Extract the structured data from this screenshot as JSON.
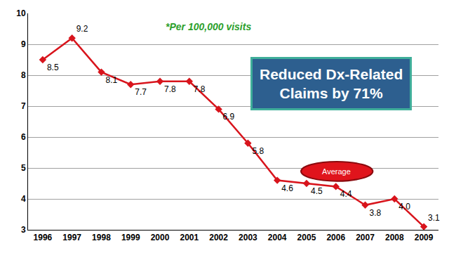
{
  "chart_data": {
    "type": "line",
    "annotations": [
      "*Per 100,000 visits",
      "Reduced Dx-Related Claims by 71%",
      "Average"
    ],
    "categories": [
      "1996",
      "1997",
      "1998",
      "1999",
      "2000",
      "2001",
      "2002",
      "2003",
      "2004",
      "2005",
      "2006",
      "2007",
      "2008",
      "2009"
    ],
    "values": [
      8.5,
      9.2,
      8.1,
      7.7,
      7.8,
      7.8,
      6.9,
      5.8,
      4.6,
      4.5,
      4.4,
      3.8,
      4.0,
      3.1
    ],
    "value_labels": [
      "8.5",
      "9.2",
      "8.1",
      "7.7",
      "7.8",
      "7.8",
      "6.9",
      "5.8",
      "4.6",
      "4.5",
      "4.4",
      "3.8",
      "4.0",
      "3.1"
    ],
    "color": "#d8141c",
    "marker": "diamond",
    "line_style": "solid",
    "data_labels": true,
    "ylim": [
      3,
      10
    ],
    "yticks": [
      3,
      4,
      5,
      6,
      7,
      8,
      9,
      10
    ],
    "grid": true
  }
}
